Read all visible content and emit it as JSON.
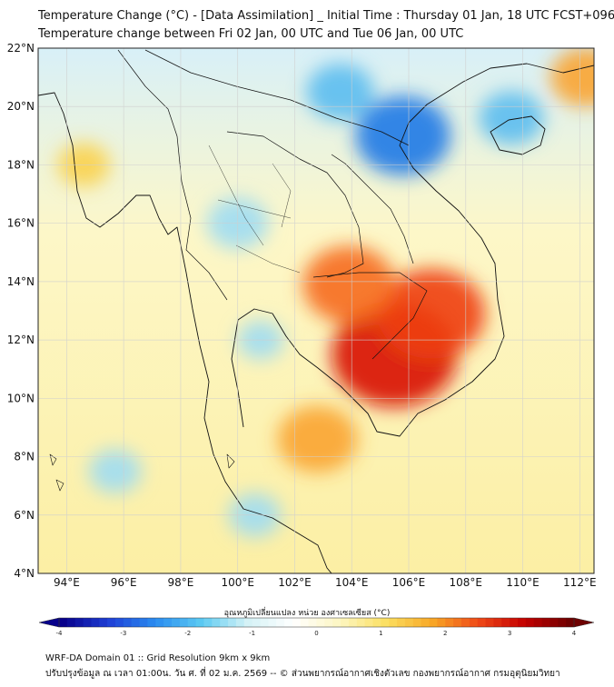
{
  "title": {
    "line1": "Temperature Change (°C) - [Data Assimilation] _ Initial Time : Thursday 01 Jan, 18 UTC FCST+096",
    "line2": "Temperature change between Fri 02 Jan, 00 UTC and Tue 06 Jan, 00 UTC"
  },
  "map": {
    "lat_ticks": [
      "22°N",
      "20°N",
      "18°N",
      "16°N",
      "14°N",
      "12°N",
      "10°N",
      "8°N",
      "6°N",
      "4°N"
    ],
    "lon_ticks": [
      "94°E",
      "96°E",
      "98°E",
      "100°E",
      "102°E",
      "104°E",
      "106°E",
      "108°E",
      "110°E",
      "112°E"
    ],
    "lat_range": [
      4,
      22
    ],
    "lon_range": [
      93,
      112.5
    ],
    "grid": true,
    "field_anomalies": [
      {
        "type": "warm",
        "lon": 105.5,
        "lat": 11.5,
        "value": 3.4
      },
      {
        "type": "warm",
        "lon": 106.8,
        "lat": 12.9,
        "value": 2.8
      },
      {
        "type": "warm",
        "lon": 103.9,
        "lat": 13.9,
        "value": 2.3
      },
      {
        "type": "warm",
        "lon": 102.8,
        "lat": 8.6,
        "value": 1.9
      },
      {
        "type": "warm",
        "lon": 112.2,
        "lat": 21.0,
        "value": 1.6
      },
      {
        "type": "warm",
        "lon": 94.6,
        "lat": 18.0,
        "value": 1.0
      },
      {
        "type": "cold",
        "lon": 105.8,
        "lat": 19.0,
        "value": -2.4
      },
      {
        "type": "cold",
        "lon": 103.6,
        "lat": 20.5,
        "value": -1.5
      },
      {
        "type": "cold",
        "lon": 109.6,
        "lat": 19.6,
        "value": -1.4
      },
      {
        "type": "cold",
        "lon": 100.0,
        "lat": 16.0,
        "value": -1.3
      },
      {
        "type": "cold",
        "lon": 95.7,
        "lat": 7.5,
        "value": -1.0
      },
      {
        "type": "cold",
        "lon": 100.6,
        "lat": 6.0,
        "value": -1.0
      },
      {
        "type": "cold",
        "lon": 100.8,
        "lat": 12.0,
        "value": -0.8
      }
    ]
  },
  "colorbar": {
    "title": "อุณหภูมิเปลี่ยนแปลง หน่วย องศาเซลเซียส (°C)",
    "ticks": [
      "-4",
      "-3",
      "-2",
      "-1",
      "0",
      "1",
      "2",
      "3",
      "4"
    ],
    "min": -4,
    "max": 4,
    "colors": [
      "#07008b",
      "#1e3fd6",
      "#2a8cf0",
      "#5ccaf2",
      "#d4f2f6",
      "#ffffff",
      "#fdf6c2",
      "#fbe062",
      "#f8a826",
      "#ef4a18",
      "#c40000",
      "#6e0000"
    ]
  },
  "footer": {
    "line1": "WRF-DA Domain 01 :: Grid Resolution 9km x 9km",
    "line2": "ปรับปรุงข้อมูล ณ เวลา 01:00น. วัน ศ. ที่ 02 ม.ค. 2569 -- © ส่วนพยากรณ์อากาศเชิงตัวเลข กองพยากรณ์อากาศ กรมอุตุนิยมวิทยา"
  }
}
